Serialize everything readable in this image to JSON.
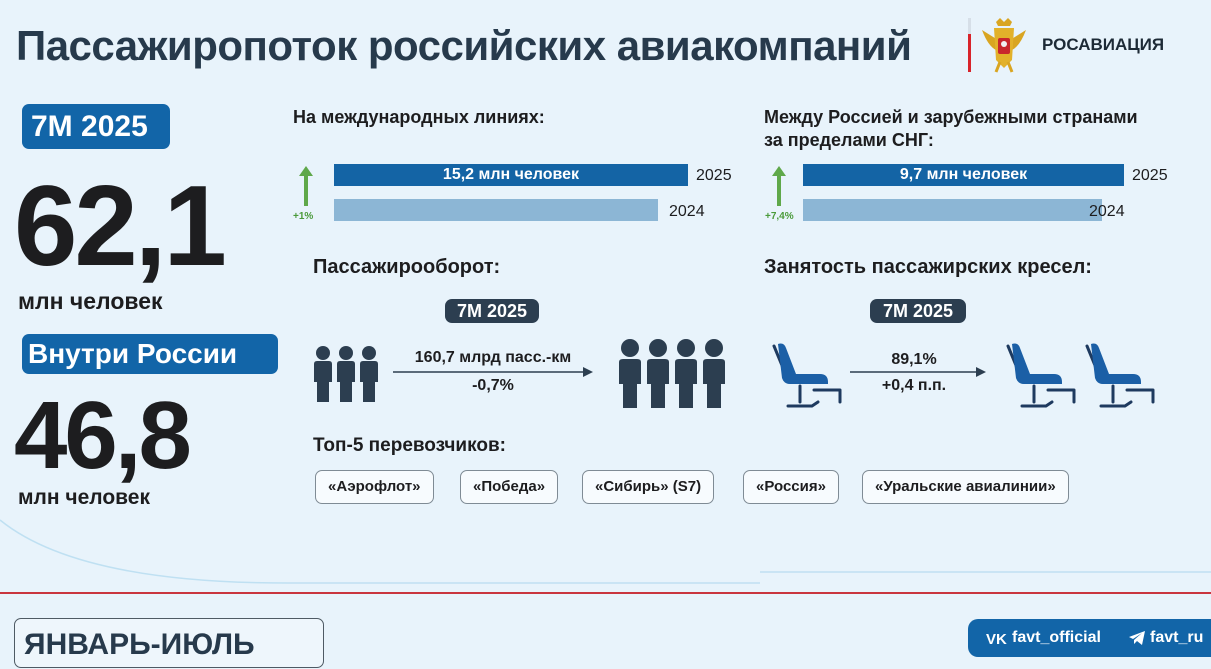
{
  "header": {
    "title": "Пассажиропоток российских авиакомпаний",
    "agency": "РОСАВИАЦИЯ"
  },
  "summary": {
    "period_badge": "7М 2025",
    "total_value": "62,1",
    "total_unit": "млн человек",
    "domestic_badge": "Внутри России",
    "domestic_value": "46,8",
    "domestic_unit": "млн человек"
  },
  "international": {
    "heading": "На международных линиях:",
    "change": "+1%",
    "bar_2025_label": "15,2 млн человек",
    "year_2025": "2025",
    "year_2024": "2024",
    "bar_2024_fraction": 0.99
  },
  "non_cis": {
    "heading_line1": "Между Россией и зарубежными странами",
    "heading_line2": "за пределами СНГ:",
    "change": "+7,4%",
    "bar_2025_label": "9,7 млн человек",
    "year_2025": "2025",
    "year_2024": "2024",
    "bar_2024_fraction": 0.93
  },
  "passenger_turnover": {
    "heading": "Пассажирооборот:",
    "badge": "7М 2025",
    "value": "160,7 млрд пасс.-км",
    "change": "-0,7%"
  },
  "seat_occupancy": {
    "heading": "Занятость пассажирских кресел:",
    "badge": "7М 2025",
    "value": "89,1%",
    "change": "+0,4 п.п."
  },
  "carriers": {
    "heading": "Топ-5 перевозчиков:",
    "items": [
      "«Аэрофлот»",
      "«Победа»",
      "«Сибирь» (S7)",
      "«Россия»",
      "«Уральские авиалинии»"
    ]
  },
  "footer": {
    "period": "ЯНВАРЬ-ИЮЛЬ",
    "vk": "favt_official",
    "telegram": "favt_ru"
  },
  "colors": {
    "accent_blue": "#1265a8",
    "light_blue": "#8cb6d5",
    "dark": "#2c3e50",
    "growth_green": "#4a9a3a",
    "red_line": "#c9353e"
  },
  "icons": [
    "emblem-icon",
    "arrow-up-icon",
    "people-icon",
    "arrow-right-icon",
    "seat-icon",
    "vk-icon",
    "telegram-icon"
  ]
}
